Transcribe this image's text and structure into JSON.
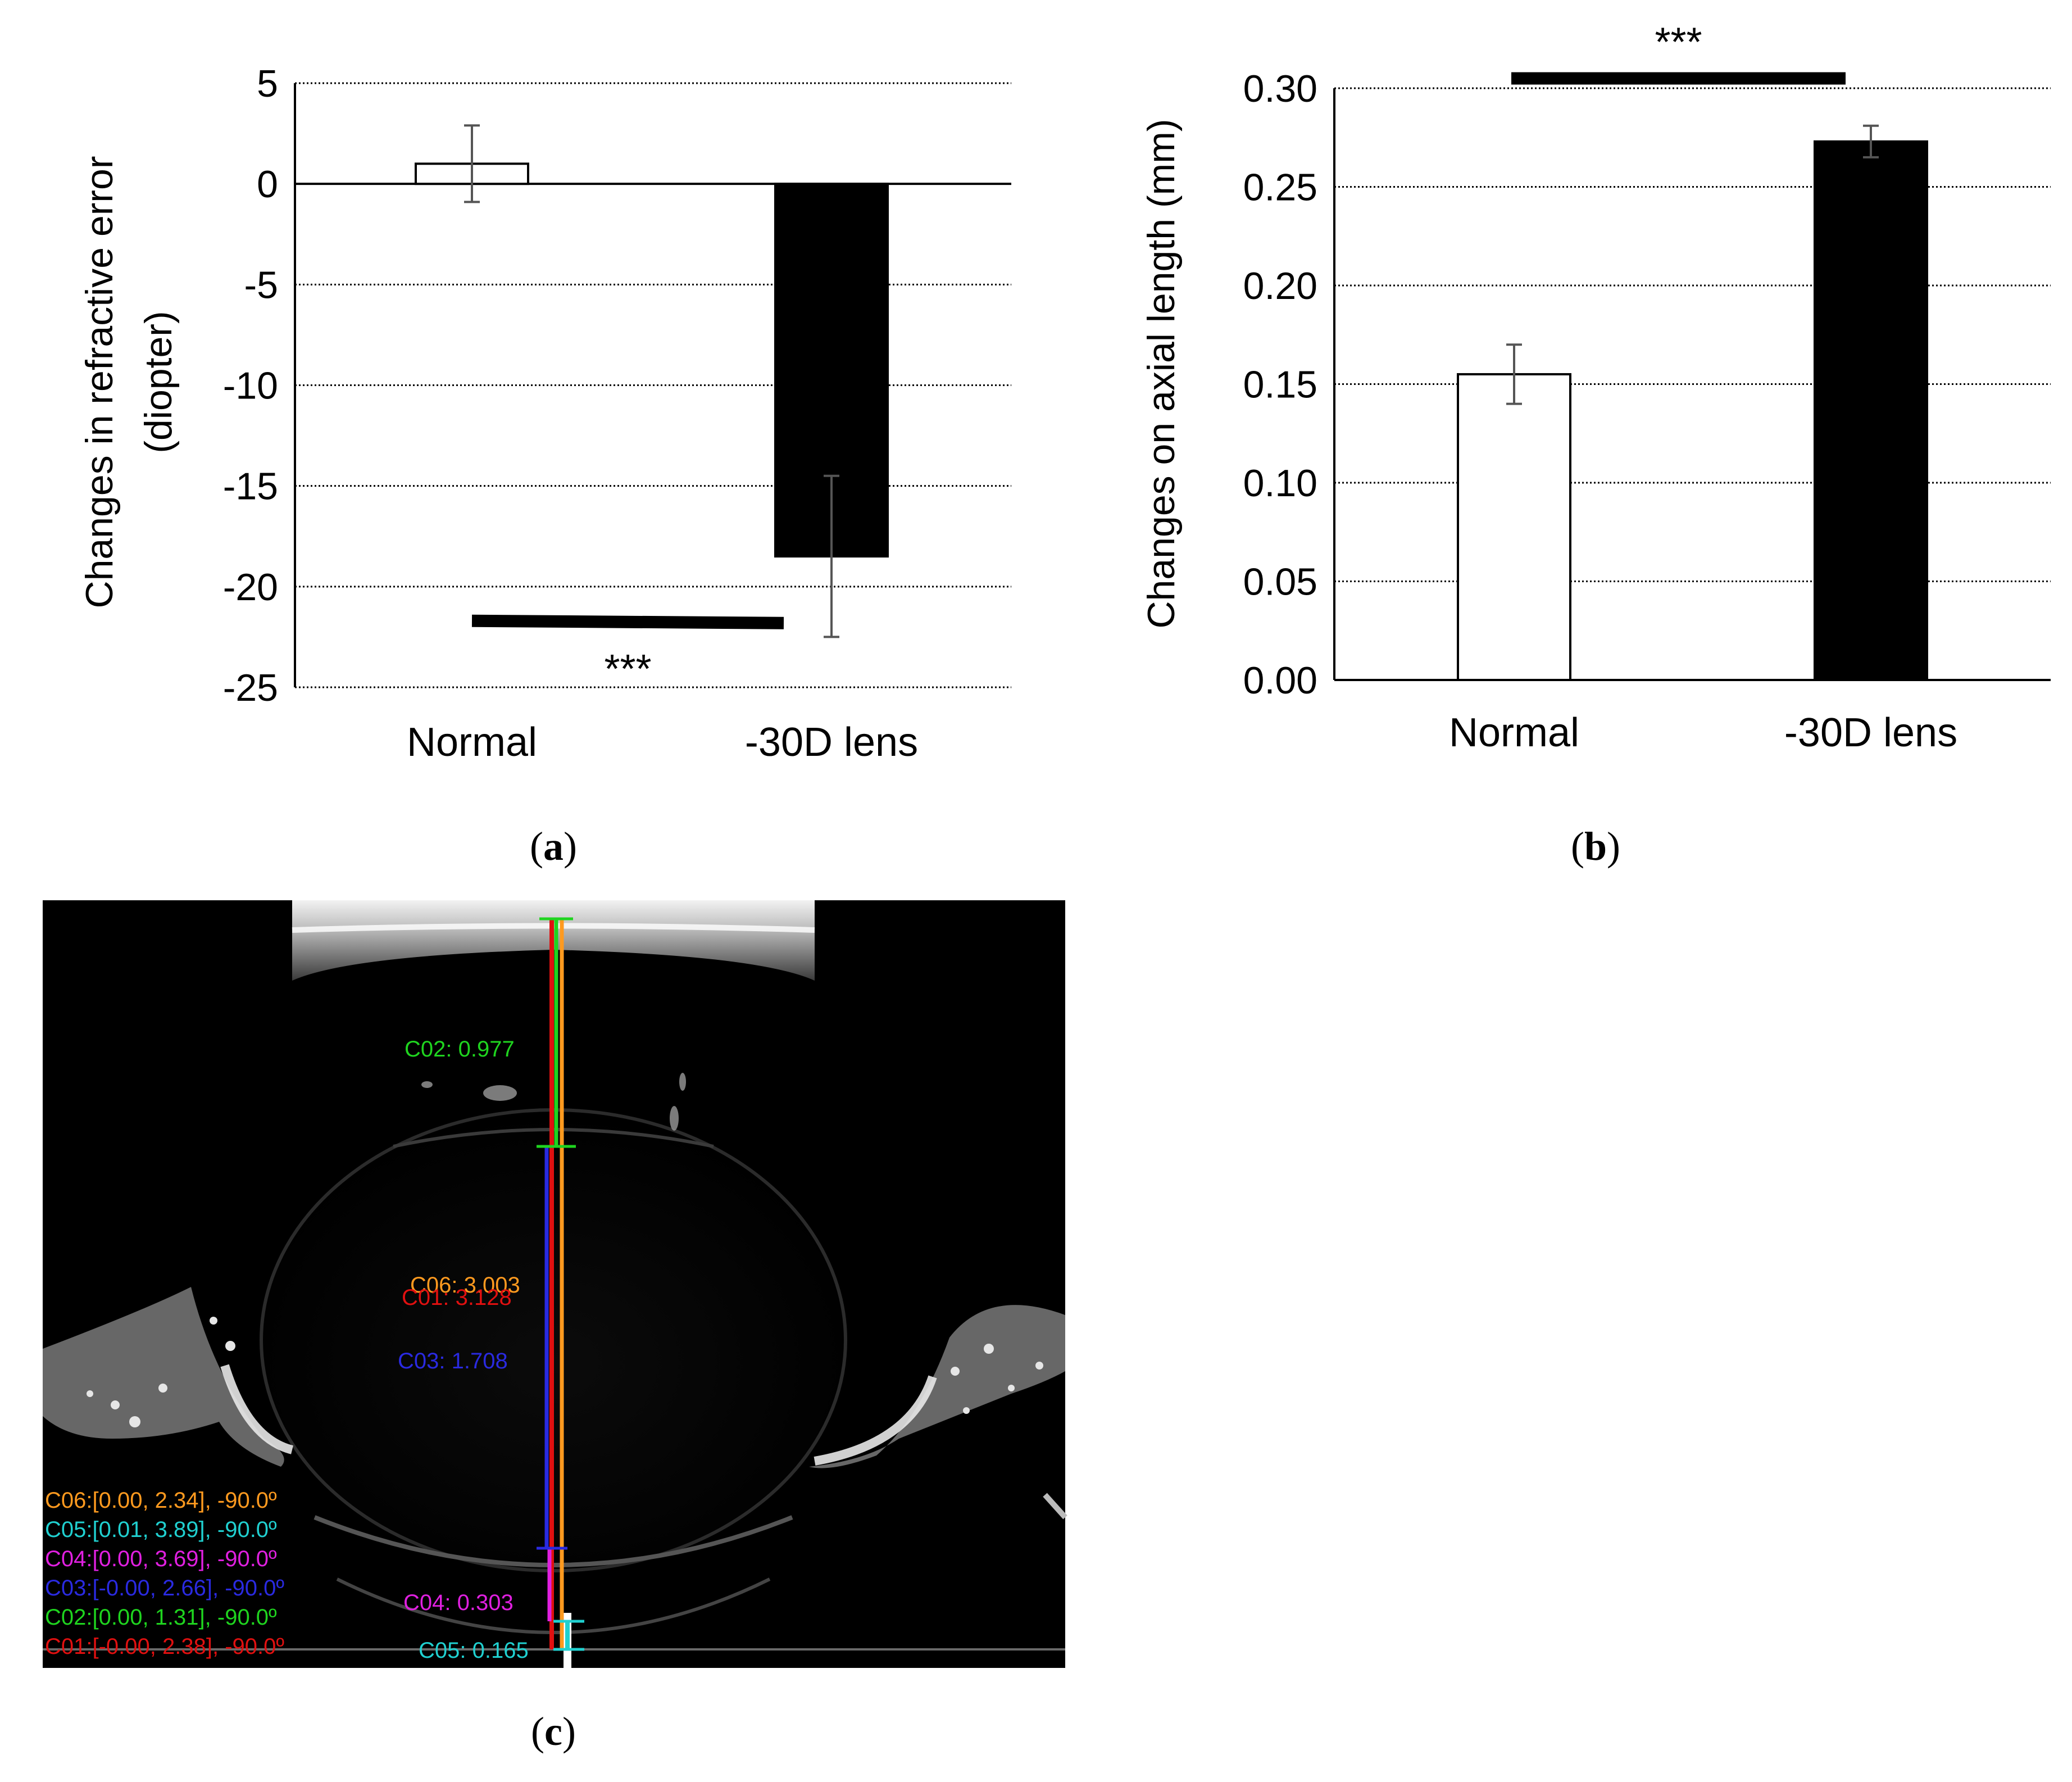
{
  "panel_labels": {
    "a": "a",
    "b": "b",
    "c": "c"
  },
  "chart_data": [
    {
      "type": "bar",
      "panel": "a",
      "categories": [
        "Normal",
        "-30D lens"
      ],
      "values": [
        1.0,
        -18.5
      ],
      "errors": [
        1.9,
        4.0
      ],
      "bar_colors": [
        "#ffffff",
        "#000000"
      ],
      "ylabel_line1": "Changes in refractive error",
      "ylabel_line2": "(diopter)",
      "ylim": [
        -25,
        5
      ],
      "yticks": [
        5,
        0,
        -5,
        -10,
        -15,
        -20,
        -25
      ],
      "ytick_labels": [
        "5",
        "0",
        "-5",
        "-10",
        "-15",
        "-20",
        "-25"
      ],
      "grid": true,
      "significance": "***",
      "significance_bar_level": -21.7
    },
    {
      "type": "bar",
      "panel": "b",
      "categories": [
        "Normal",
        "-30D lens"
      ],
      "values": [
        0.155,
        0.273
      ],
      "errors": [
        0.015,
        0.008
      ],
      "bar_colors": [
        "#ffffff",
        "#000000"
      ],
      "ylabel": "Changes on axial length (mm)",
      "ylim": [
        0,
        0.3
      ],
      "yticks": [
        0,
        0.05,
        0.1,
        0.15,
        0.2,
        0.25,
        0.3
      ],
      "ytick_labels": [
        "0.00",
        "0.05",
        "0.10",
        "0.15",
        "0.20",
        "0.25",
        "0.30"
      ],
      "grid": true,
      "significance": "***",
      "significance_bar_level": 0.305
    }
  ],
  "oct_image": {
    "measure_labels": [
      {
        "id": "C02",
        "text": "C02: 0.977",
        "color": "#1fd41f"
      },
      {
        "id": "C06",
        "text": "C06: 3.003",
        "color": "#ff9a1f"
      },
      {
        "id": "C01",
        "text": "C01: 3.128",
        "color": "#e01010"
      },
      {
        "id": "C03",
        "text": "C03: 1.708",
        "color": "#2a2ae0"
      },
      {
        "id": "C04",
        "text": "C04: 0.303",
        "color": "#e020e0"
      },
      {
        "id": "C05",
        "text": "C05: 0.165",
        "color": "#20d0d0"
      }
    ],
    "legend": [
      {
        "text": "C06:[0.00, 2.34], -90.0º",
        "color": "#ff9a1f"
      },
      {
        "text": "C05:[0.01, 3.89], -90.0º",
        "color": "#20d0d0"
      },
      {
        "text": "C04:[0.00, 3.69], -90.0º",
        "color": "#e020e0"
      },
      {
        "text": "C03:[-0.00, 2.66], -90.0º",
        "color": "#2a2ae0"
      },
      {
        "text": "C02:[0.00, 1.31], -90.0º",
        "color": "#1fd41f"
      },
      {
        "text": "C01:[-0.00, 2.38], -90.0º",
        "color": "#e01010"
      }
    ]
  }
}
